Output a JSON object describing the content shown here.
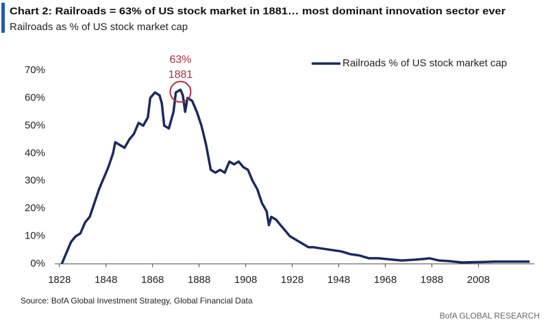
{
  "chart_data": {
    "type": "line",
    "title": "Chart 2: Railroads = 63% of US stock market in 1881… most dominant innovation sector ever",
    "subtitle": "Railroads as % of US stock market cap",
    "source": "Source: BofA Global Investment Strategy, Global Financial Data",
    "branding": "BofA GLOBAL RESEARCH",
    "annotations": [
      "63%",
      "1881"
    ],
    "legend": "top-right",
    "x": [
      1829,
      1831,
      1833,
      1835,
      1837,
      1839,
      1841,
      1843,
      1845,
      1847,
      1849,
      1851,
      1852,
      1854,
      1856,
      1858,
      1860,
      1862,
      1864,
      1866,
      1867,
      1869,
      1871,
      1872,
      1873,
      1875,
      1877,
      1878,
      1880,
      1881,
      1882,
      1883,
      1885,
      1887,
      1889,
      1891,
      1893,
      1895,
      1897,
      1899,
      1901,
      1903,
      1905,
      1907,
      1909,
      1911,
      1913,
      1915,
      1917,
      1918,
      1919,
      1921,
      1923,
      1925,
      1927,
      1929,
      1931,
      1933,
      1935,
      1937,
      1941,
      1945,
      1949,
      1953,
      1957,
      1961,
      1965,
      1971,
      1975,
      1981,
      1985,
      1987,
      1991,
      1995,
      2001,
      2005,
      2011,
      2015,
      2021,
      2030
    ],
    "series": [
      {
        "name": "Railroads % of US stock market cap",
        "color": "#1b2a5e",
        "values": [
          0,
          4,
          8,
          10,
          11,
          15,
          17,
          22,
          27,
          31,
          35,
          40,
          44,
          43,
          42,
          45,
          47,
          51,
          50,
          53,
          60,
          62,
          61,
          58,
          50,
          49,
          55,
          62,
          63,
          61,
          55,
          60,
          59,
          55,
          50,
          43,
          34,
          33,
          34,
          33,
          37,
          36,
          37,
          35,
          34,
          30,
          27,
          22,
          19,
          14,
          17,
          16,
          14,
          12,
          10,
          9,
          8,
          7,
          6,
          6,
          5.5,
          5,
          4.5,
          3.5,
          3,
          2,
          2,
          1.5,
          1.2,
          1.5,
          1.8,
          2,
          1.2,
          1,
          0.5,
          0.6,
          0.7,
          0.8,
          0.8,
          0.8
        ]
      }
    ],
    "xlim": [
      1826,
      2032
    ],
    "xticks": [
      1828,
      1848,
      1868,
      1888,
      1908,
      1928,
      1948,
      1968,
      1988,
      2008
    ],
    "ylim": [
      0,
      70
    ],
    "yticks": [
      {
        "value": 0,
        "label": "0%"
      },
      {
        "value": 10,
        "label": "10%"
      },
      {
        "value": 20,
        "label": "20%"
      },
      {
        "value": 30,
        "label": "30%"
      },
      {
        "value": 40,
        "label": "40%"
      },
      {
        "value": 50,
        "label": "50%"
      },
      {
        "value": 60,
        "label": "60%"
      },
      {
        "value": 70,
        "label": "70%"
      }
    ],
    "grid": false
  }
}
